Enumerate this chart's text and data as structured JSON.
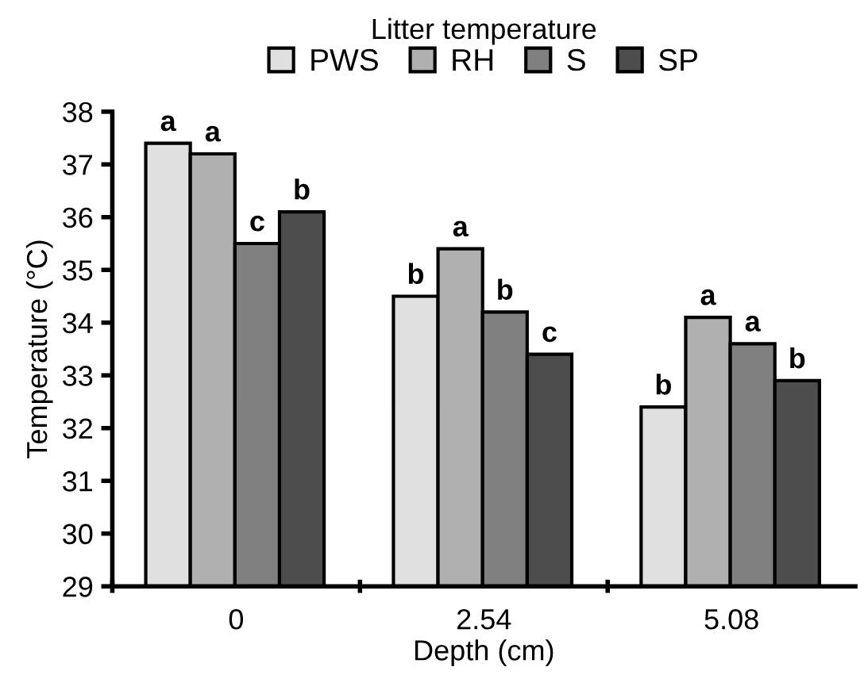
{
  "chart_data": {
    "type": "bar",
    "title": "Litter temperature",
    "xlabel": "Depth (cm)",
    "ylabel": "Temperature (°C)",
    "categories": [
      "0",
      "2.54",
      "5.08"
    ],
    "series": [
      {
        "name": "PWS",
        "color": "#e0e0e0",
        "values": [
          37.4,
          34.5,
          32.4
        ],
        "value_labels": [
          "a",
          "b",
          "b"
        ]
      },
      {
        "name": "RH",
        "color": "#b0b0b0",
        "values": [
          37.2,
          35.4,
          34.1
        ],
        "value_labels": [
          "a",
          "a",
          "a"
        ]
      },
      {
        "name": "S",
        "color": "#808080",
        "values": [
          35.5,
          34.2,
          33.6
        ],
        "value_labels": [
          "c",
          "b",
          "a"
        ]
      },
      {
        "name": "SP",
        "color": "#4d4d4d",
        "values": [
          36.1,
          33.4,
          32.9
        ],
        "value_labels": [
          "b",
          "c",
          "b"
        ]
      }
    ],
    "ylim": [
      29,
      38
    ],
    "yticks": [
      29,
      30,
      31,
      32,
      33,
      34,
      35,
      36,
      37,
      38
    ],
    "grid": false,
    "legend": "top"
  }
}
